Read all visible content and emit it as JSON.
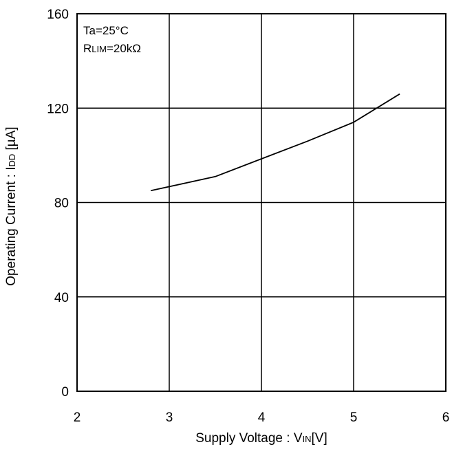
{
  "chart_data": {
    "type": "line",
    "xlabel": {
      "prefix": "Supply Voltage : V",
      "subscript": "IN",
      "suffix": "[V]"
    },
    "ylabel": {
      "prefix": "Operating Current : I",
      "subscript": "DD",
      "suffix": " [µA]"
    },
    "xlim": [
      2,
      6
    ],
    "ylim": [
      0,
      160
    ],
    "xticks": [
      2,
      3,
      4,
      5,
      6
    ],
    "yticks": [
      0,
      40,
      80,
      120,
      160
    ],
    "grid": true,
    "annotations": {
      "line1": "Ta=25°C",
      "line2": {
        "prefix": "R",
        "subscript": "LIM",
        "suffix": "=20kΩ"
      }
    },
    "series": [
      {
        "x": [
          2.8,
          3.5,
          4.0,
          4.5,
          5.0,
          5.5
        ],
        "y": [
          85.0,
          91.0,
          98.5,
          106.0,
          114.0,
          126.0
        ]
      }
    ]
  }
}
